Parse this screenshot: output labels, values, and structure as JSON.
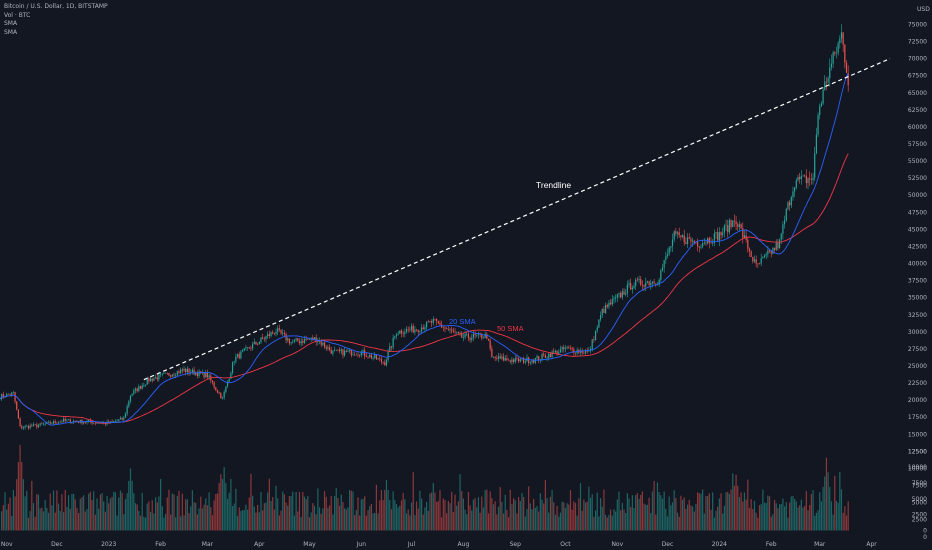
{
  "header": {
    "symbol_line": "Bitcoin / U.S. Dollar, 1D, BITSTAMP",
    "vol_line": "Vol · BTC",
    "sma1_line": "SMA",
    "sma2_line": "SMA"
  },
  "currency_label": "USD",
  "colors": {
    "background": "#131722",
    "up": "#26a69a",
    "down": "#ef5350",
    "sma20": "#2962ff",
    "sma50": "#f23645",
    "trendline": "#ffffff",
    "annotation_text": "#ffffff"
  },
  "annotations": {
    "trendline": "Trendline",
    "sma20": "20 SMA",
    "sma50": "50 SMA"
  },
  "chart_data": {
    "type": "candlestick",
    "title": "Bitcoin / U.S. Dollar, 1D, BITSTAMP",
    "ylabel": "USD",
    "price_ylim": [
      -1500,
      78000
    ],
    "price_ticks": [
      0,
      2500,
      5000,
      7500,
      10000,
      12500,
      15000,
      17500,
      20000,
      22500,
      25000,
      27500,
      30000,
      32500,
      35000,
      37500,
      40000,
      42500,
      45000,
      47500,
      50000,
      52500,
      55000,
      57500,
      60000,
      62500,
      65000,
      67500,
      70000,
      72500,
      75000
    ],
    "price_tick_labels": [
      "0",
      "2500",
      "5000",
      "7500",
      "10000",
      "12500",
      "15000",
      "17500",
      "20000",
      "22500",
      "25000",
      "27500",
      "30000",
      "32500",
      "35000",
      "37500",
      "40000",
      "42500",
      "45000",
      "47500",
      "50000",
      "52500",
      "55000",
      "57500",
      "60000",
      "62500",
      "65000",
      "67500",
      "70000",
      "72500",
      "75000"
    ],
    "x_range": [
      "2022-10-28",
      "2024-04-12"
    ],
    "x_ticks": [
      {
        "label": "Nov",
        "date": "2022-11-01"
      },
      {
        "label": "Dec",
        "date": "2022-12-01"
      },
      {
        "label": "2023",
        "date": "2023-01-01"
      },
      {
        "label": "Feb",
        "date": "2023-02-01"
      },
      {
        "label": "Mar",
        "date": "2023-03-01"
      },
      {
        "label": "Apr",
        "date": "2023-04-01"
      },
      {
        "label": "May",
        "date": "2023-05-01"
      },
      {
        "label": "Jun",
        "date": "2023-06-01"
      },
      {
        "label": "Jul",
        "date": "2023-07-01"
      },
      {
        "label": "Aug",
        "date": "2023-08-01"
      },
      {
        "label": "Sep",
        "date": "2023-09-01"
      },
      {
        "label": "Oct",
        "date": "2023-10-01"
      },
      {
        "label": "Nov",
        "date": "2023-11-01"
      },
      {
        "label": "Dec",
        "date": "2023-12-01"
      },
      {
        "label": "2024",
        "date": "2024-01-01"
      },
      {
        "label": "Feb",
        "date": "2024-02-01"
      },
      {
        "label": "Mar",
        "date": "2024-03-01"
      },
      {
        "label": "Apr",
        "date": "2024-04-01"
      }
    ],
    "price_path": [
      {
        "date": "2022-10-28",
        "close": 20500
      },
      {
        "date": "2022-11-05",
        "close": 21000
      },
      {
        "date": "2022-11-09",
        "close": 16000
      },
      {
        "date": "2022-11-20",
        "close": 16300
      },
      {
        "date": "2022-12-05",
        "close": 17000
      },
      {
        "date": "2022-12-20",
        "close": 16800
      },
      {
        "date": "2023-01-01",
        "close": 16600
      },
      {
        "date": "2023-01-10",
        "close": 17300
      },
      {
        "date": "2023-01-14",
        "close": 20800
      },
      {
        "date": "2023-01-25",
        "close": 23000
      },
      {
        "date": "2023-02-15",
        "close": 24400
      },
      {
        "date": "2023-03-01",
        "close": 23600
      },
      {
        "date": "2023-03-10",
        "close": 20200
      },
      {
        "date": "2023-03-17",
        "close": 26000
      },
      {
        "date": "2023-03-25",
        "close": 27500
      },
      {
        "date": "2023-04-11",
        "close": 30200
      },
      {
        "date": "2023-04-20",
        "close": 28500
      },
      {
        "date": "2023-05-05",
        "close": 29000
      },
      {
        "date": "2023-05-15",
        "close": 27000
      },
      {
        "date": "2023-06-01",
        "close": 27000
      },
      {
        "date": "2023-06-15",
        "close": 25500
      },
      {
        "date": "2023-06-22",
        "close": 30000
      },
      {
        "date": "2023-07-05",
        "close": 30500
      },
      {
        "date": "2023-07-14",
        "close": 31500
      },
      {
        "date": "2023-07-31",
        "close": 29200
      },
      {
        "date": "2023-08-15",
        "close": 29400
      },
      {
        "date": "2023-08-18",
        "close": 26200
      },
      {
        "date": "2023-09-01",
        "close": 25800
      },
      {
        "date": "2023-09-12",
        "close": 25900
      },
      {
        "date": "2023-10-01",
        "close": 27500
      },
      {
        "date": "2023-10-15",
        "close": 27000
      },
      {
        "date": "2023-10-23",
        "close": 33000
      },
      {
        "date": "2023-11-10",
        "close": 37000
      },
      {
        "date": "2023-11-25",
        "close": 37500
      },
      {
        "date": "2023-12-05",
        "close": 44000
      },
      {
        "date": "2023-12-20",
        "close": 43000
      },
      {
        "date": "2024-01-01",
        "close": 44200
      },
      {
        "date": "2024-01-11",
        "close": 46500
      },
      {
        "date": "2024-01-23",
        "close": 39500
      },
      {
        "date": "2024-02-06",
        "close": 43000
      },
      {
        "date": "2024-02-10",
        "close": 47500
      },
      {
        "date": "2024-02-15",
        "close": 52000
      },
      {
        "date": "2024-02-26",
        "close": 52500
      },
      {
        "date": "2024-02-29",
        "close": 62000
      },
      {
        "date": "2024-03-05",
        "close": 67000
      },
      {
        "date": "2024-03-12",
        "close": 72000
      },
      {
        "date": "2024-03-14",
        "close": 73500
      },
      {
        "date": "2024-03-18",
        "close": 67000
      }
    ],
    "trendline": {
      "start": {
        "date": "2023-01-22",
        "price": 23000
      },
      "end": {
        "date": "2024-04-12",
        "price": 70000
      }
    },
    "volume_ylim": [
      -1500,
      13500
    ],
    "volume_ticks": [
      0,
      2500,
      5000,
      7500,
      10000,
      12500
    ],
    "volume_tick_labels": [
      "0",
      "2500",
      "5000",
      "7500",
      "10000",
      "12500"
    ],
    "volume_peaks": [
      {
        "date": "2022-11-09",
        "value": 13500
      },
      {
        "date": "2023-01-14",
        "value": 9800
      },
      {
        "date": "2023-03-10",
        "value": 12500
      },
      {
        "date": "2023-06-16",
        "value": 8000
      },
      {
        "date": "2023-07-14",
        "value": 7500
      },
      {
        "date": "2024-01-11",
        "value": 8800
      },
      {
        "date": "2024-03-05",
        "value": 11500
      }
    ],
    "series": [
      {
        "name": "20 SMA",
        "period": 20,
        "color": "#2962ff"
      },
      {
        "name": "50 SMA",
        "period": 50,
        "color": "#f23645"
      }
    ]
  }
}
